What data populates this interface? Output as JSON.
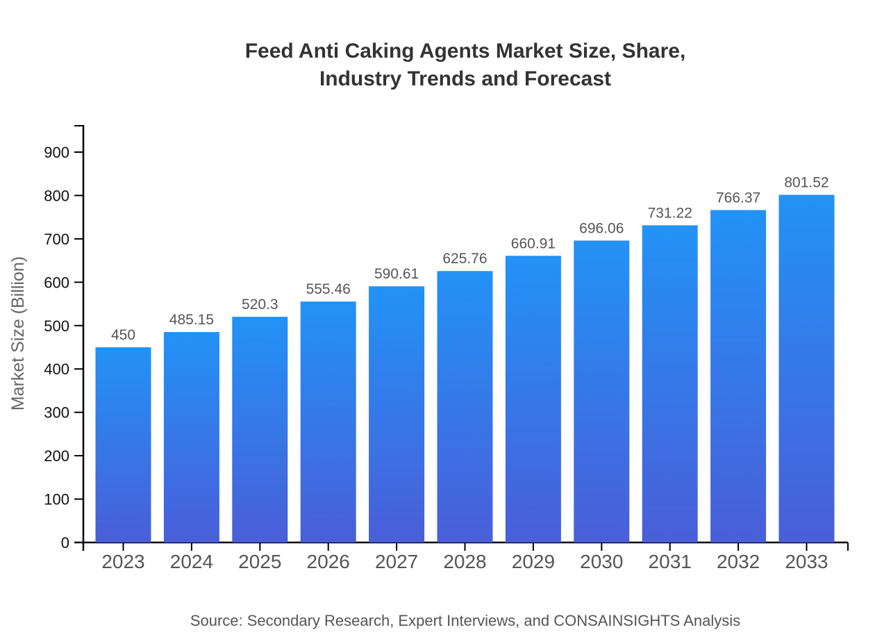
{
  "page": {
    "background": "#ffffff"
  },
  "header": {
    "title_line1": "Feed Anti Caking Agents Market Size, Share,",
    "title_line2": "Industry Trends and Forecast"
  },
  "footer": {
    "source_text": "Source: Secondary Research, Expert Interviews, and CONSAINSIGHTS Analysis"
  },
  "colors": {
    "background": "#ffffff",
    "title": "#333333",
    "axis": "#000000",
    "y_tick_label": "#111111",
    "x_tick_label": "#555555",
    "value_label": "#555555",
    "axis_title": "#666666",
    "source_text": "#555555",
    "bar_gradient_top": "#2292f7",
    "bar_gradient_bottom": "#4a5ed8"
  },
  "chart_data": {
    "type": "bar",
    "title": "Feed Anti Caking Agents Market Size, Share, Industry Trends and Forecast",
    "categories": [
      "2023",
      "2024",
      "2025",
      "2026",
      "2027",
      "2028",
      "2029",
      "2030",
      "2031",
      "2032",
      "2033"
    ],
    "values": [
      450,
      485.15,
      520.3,
      555.46,
      590.61,
      625.76,
      660.91,
      696.06,
      731.22,
      766.37,
      801.52
    ],
    "value_labels": [
      "450",
      "485.15",
      "520.3",
      "555.46",
      "590.61",
      "625.76",
      "660.91",
      "696.06",
      "731.22",
      "766.37",
      "801.52"
    ],
    "xlabel": "",
    "ylabel": "Market Size (Billion)",
    "ylim": [
      0,
      963
    ],
    "yticks": [
      0,
      100,
      200,
      300,
      400,
      500,
      600,
      700,
      800,
      900
    ],
    "grid": false,
    "legend": false,
    "bar_fill": "vertical-gradient(top #2292f7, bottom #4a5ed8)"
  }
}
